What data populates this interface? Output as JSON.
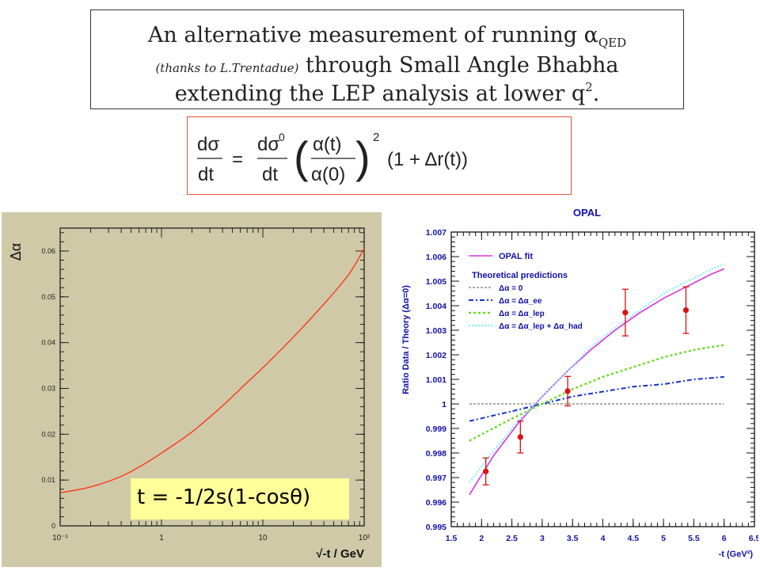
{
  "title": {
    "line1_text": "An alternative measurement of running ",
    "line1_alpha": "α",
    "line1_sub": "QED",
    "line2_italic": "(thanks to L.Trentadue)",
    "line2_text": " through Small Angle Bhabha",
    "line3_text": "extending the LEP analysis at lower q",
    "line3_sup": "2",
    "line3_end": "."
  },
  "formula": "dσ/dt = dσ⁰/dt (α(t)/α(0))² (1 + Δr(t))",
  "t_annotation": "t = -1/2s(1-cosθ)",
  "colors": {
    "curve_red": "#ff3a1a",
    "opal_fit": "#dd33dd",
    "dashed_zero": "#777777",
    "dashdot_ee": "#1133cc",
    "dotted_lep": "#66dd22",
    "dotted_had": "#88eeff",
    "data_points": "#dd1111",
    "ylabel_blue": "#1111aa",
    "panel_beige": "#cfc9a8"
  },
  "chart_data": [
    {
      "type": "line",
      "title": "",
      "xlabel": "√-t / GeV",
      "ylabel": "Δα",
      "x_scale": "log",
      "xlim": [
        0.1,
        100
      ],
      "ylim": [
        0,
        0.065
      ],
      "x_tick_labels": [
        "10⁻¹",
        "1",
        "10",
        "10²"
      ],
      "x_tick_values": [
        0.1,
        1,
        10,
        100
      ],
      "y_tick_labels": [
        "0",
        "0.01",
        "0.02",
        "0.03",
        "0.04",
        "0.05",
        "0.06"
      ],
      "y_tick_values": [
        0,
        0.01,
        0.02,
        0.03,
        0.04,
        0.05,
        0.06
      ],
      "grid": false,
      "series": [
        {
          "x": [
            0.1,
            0.2,
            0.4,
            0.7,
            1,
            2,
            4,
            7,
            10,
            20,
            40,
            70,
            100
          ],
          "y": [
            0.0072,
            0.0085,
            0.0108,
            0.0137,
            0.0159,
            0.0205,
            0.0262,
            0.0313,
            0.0345,
            0.0412,
            0.0484,
            0.0548,
            0.0605
          ]
        }
      ]
    },
    {
      "type": "line",
      "title": "OPAL",
      "xlabel": "-t (GeV²)",
      "ylabel": "Ratio Data / Theory (Δα=0)",
      "xlim": [
        1.5,
        6.5
      ],
      "ylim": [
        0.995,
        1.007
      ],
      "x_tick_labels": [
        "1.5",
        "2",
        "2.5",
        "3",
        "3.5",
        "4",
        "4.5",
        "5",
        "5.5",
        "6",
        "6.5"
      ],
      "x_tick_values": [
        1.5,
        2,
        2.5,
        3,
        3.5,
        4,
        4.5,
        5,
        5.5,
        6,
        6.5
      ],
      "y_tick_labels": [
        "0.995",
        "0.996",
        "0.997",
        "0.998",
        "0.999",
        "1",
        "1.001",
        "1.002",
        "1.003",
        "1.004",
        "1.005",
        "1.006",
        "1.007"
      ],
      "y_tick_values": [
        0.995,
        0.996,
        0.997,
        0.998,
        0.999,
        1.0,
        1.001,
        1.002,
        1.003,
        1.004,
        1.005,
        1.006,
        1.007
      ],
      "grid": false,
      "legend_heading": "Theoretical predictions",
      "series": [
        {
          "name": "OPAL fit",
          "style": "solid",
          "x": [
            1.8,
            2.2,
            2.6,
            3.0,
            3.4,
            3.8,
            4.2,
            4.6,
            5.0,
            5.4,
            5.8,
            6.0
          ],
          "y": [
            0.9963,
            0.9979,
            0.9992,
            1.0003,
            1.0013,
            1.0022,
            1.003,
            1.0037,
            1.0043,
            1.0048,
            1.0053,
            1.0055
          ]
        },
        {
          "name": "Δα = 0",
          "style": "dashed",
          "x": [
            1.8,
            6.0
          ],
          "y": [
            1.0,
            1.0
          ]
        },
        {
          "name": "Δα = Δα_ee",
          "style": "dashdot",
          "x": [
            1.8,
            2.5,
            3.0,
            3.5,
            4.0,
            4.5,
            5.0,
            5.5,
            6.0
          ],
          "y": [
            0.9993,
            0.9997,
            1.0,
            1.0003,
            1.0005,
            1.0007,
            1.0008,
            1.001,
            1.0011
          ]
        },
        {
          "name": "Δα = Δα_lep",
          "style": "dotted",
          "x": [
            1.8,
            2.5,
            3.0,
            3.5,
            4.0,
            4.5,
            5.0,
            5.5,
            6.0
          ],
          "y": [
            0.9985,
            0.9994,
            1.0,
            1.0006,
            1.0011,
            1.0015,
            1.0019,
            1.0022,
            1.0024
          ]
        },
        {
          "name": "Δα = Δα_lep + Δα_had",
          "style": "dotted",
          "x": [
            1.8,
            2.2,
            2.6,
            3.0,
            3.4,
            3.8,
            4.2,
            4.6,
            5.0,
            5.4,
            5.8,
            6.0
          ],
          "y": [
            0.9968,
            0.9981,
            0.9993,
            1.0003,
            1.0013,
            1.0023,
            1.0031,
            1.0038,
            1.0045,
            1.005,
            1.0055,
            1.0057
          ]
        }
      ],
      "points": {
        "x": [
          2.07,
          2.64,
          3.42,
          4.37,
          5.37
        ],
        "y": [
          0.99725,
          0.99865,
          1.00052,
          1.00372,
          1.00382
        ],
        "err": [
          0.00055,
          0.00065,
          0.0006,
          0.00095,
          0.00095
        ]
      }
    }
  ]
}
